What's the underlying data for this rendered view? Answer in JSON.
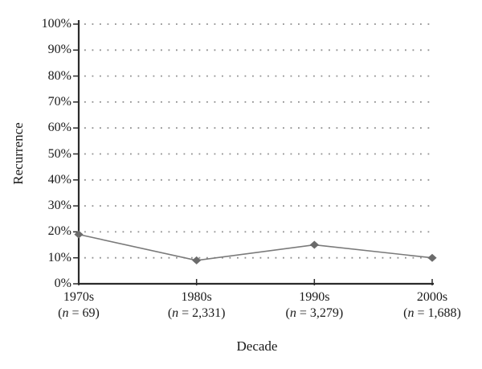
{
  "figure": {
    "background": "#ffffff"
  },
  "chart_data": {
    "type": "line",
    "title": "",
    "xlabel": "Decade",
    "ylabel": "Recurrence",
    "categories": [
      "1970s",
      "1980s",
      "1990s",
      "2000s"
    ],
    "category_sublabels": [
      "(n = 69)",
      "(n = 2,331)",
      "(n = 3,279)",
      "(n = 1,688)"
    ],
    "series": [
      {
        "name": "Recurrence",
        "values": [
          19,
          9,
          15,
          10
        ],
        "unit": "%"
      }
    ],
    "ylim": [
      0,
      100
    ],
    "ytick_step": 10,
    "ytick_labels": [
      "0%",
      "10%",
      "20%",
      "30%",
      "40%",
      "50%",
      "60%",
      "70%",
      "80%",
      "90%",
      "100%"
    ],
    "grid": "horizontal-dotted",
    "legend": "none",
    "marker": "diamond",
    "colors": {
      "line": "#7a7a7a",
      "marker": "#6b6b6b",
      "axis": "#2b2b2b",
      "grid_dots": "#8f8f8f",
      "text": "#1a1a1a",
      "background": "#ffffff"
    }
  }
}
